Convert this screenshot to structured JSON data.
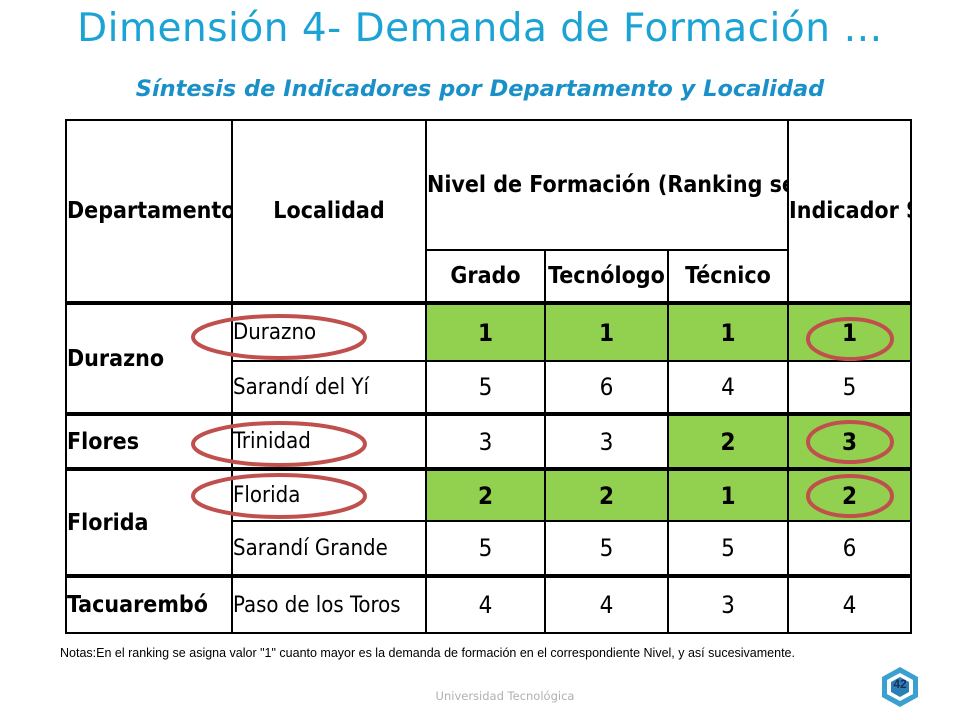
{
  "title": "Dimensión 4- Demanda de Formación …",
  "subtitle": "Síntesis de Indicadores por Departamento y Localidad",
  "table": {
    "headers": {
      "departamento": "Departamento",
      "localidad": "Localidad",
      "nivel": "Nivel de Formación (Ranking según Demanda)",
      "indicador": "Indicador Síntesis",
      "grado": "Grado",
      "tecnologo": "Tecnólogo",
      "tecnico": "Técnico"
    },
    "rows": [
      {
        "departamento": "Durazno",
        "localidad": "Durazno",
        "grado": "1",
        "tecnologo": "1",
        "tecnico": "1",
        "indicador": "1"
      },
      {
        "departamento": "Durazno",
        "localidad": "Sarandí del Yí",
        "grado": "5",
        "tecnologo": "6",
        "tecnico": "4",
        "indicador": "5"
      },
      {
        "departamento": "Flores",
        "localidad": "Trinidad",
        "grado": "3",
        "tecnologo": "3",
        "tecnico": "2",
        "indicador": "3"
      },
      {
        "departamento": "Florida",
        "localidad": "Florida",
        "grado": "2",
        "tecnologo": "2",
        "tecnico": "1",
        "indicador": "2"
      },
      {
        "departamento": "Florida",
        "localidad": "Sarandí Grande",
        "grado": "5",
        "tecnologo": "5",
        "tecnico": "5",
        "indicador": "6"
      },
      {
        "departamento": "Tacuarembó",
        "localidad": "Paso de los Toros",
        "grado": "4",
        "tecnologo": "4",
        "tecnico": "3",
        "indicador": "4"
      }
    ]
  },
  "notes": "Notas:En el ranking se asigna valor \"1\" cuanto mayor es la demanda de formación en el correspondiente Nivel, y así sucesivamente.",
  "footer": "Universidad Tecnológica",
  "page_number": "42",
  "colors": {
    "title": "#1aa3d4",
    "highlight_fill": "#92d050",
    "circle_stroke": "#c0504d"
  }
}
